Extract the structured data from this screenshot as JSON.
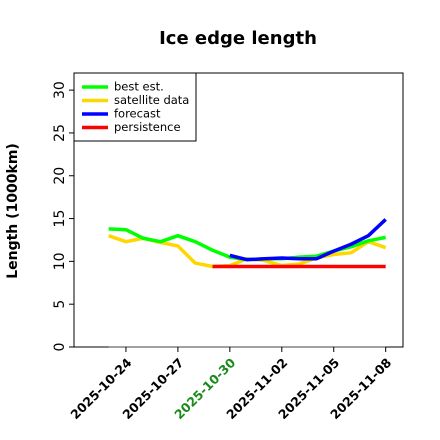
{
  "chart_data": {
    "type": "line",
    "title": "Ice edge length",
    "xlabel": "",
    "ylabel": "Length (1000km)",
    "ylim": [
      0,
      32
    ],
    "yticks": [
      0,
      5,
      10,
      15,
      20,
      25,
      30
    ],
    "xlim": [
      "2025-10-21",
      "2025-11-09"
    ],
    "xticks": [
      "2025-10-24",
      "2025-10-27",
      "2025-10-30",
      "2025-11-02",
      "2025-11-05",
      "2025-11-08"
    ],
    "highlighted_xtick": "2025-10-30",
    "highlight_color": "#1a8a1a",
    "grid": false,
    "legend_position": "top-left",
    "series": [
      {
        "name": "best est.",
        "color": "#00ff00",
        "x": [
          "2025-10-23",
          "2025-10-24",
          "2025-10-25",
          "2025-10-26",
          "2025-10-27",
          "2025-10-28",
          "2025-10-29",
          "2025-10-30",
          "2025-10-31",
          "2025-11-01",
          "2025-11-02",
          "2025-11-03",
          "2025-11-04",
          "2025-11-05",
          "2025-11-06",
          "2025-11-07",
          "2025-11-08"
        ],
        "values": [
          13.8,
          13.7,
          12.7,
          12.3,
          13.0,
          12.3,
          11.3,
          10.5,
          10.2,
          10.3,
          10.3,
          10.5,
          10.6,
          11.2,
          11.7,
          12.4,
          12.8
        ]
      },
      {
        "name": "satellite data",
        "color": "#ffd700",
        "x": [
          "2025-10-23",
          "2025-10-24",
          "2025-10-25",
          "2025-10-26",
          "2025-10-27",
          "2025-10-28",
          "2025-10-29",
          "2025-10-30",
          "2025-10-31",
          "2025-11-01",
          "2025-11-02",
          "2025-11-03",
          "2025-11-04",
          "2025-11-05",
          "2025-11-06",
          "2025-11-07",
          "2025-11-08"
        ],
        "values": [
          13.0,
          12.3,
          12.7,
          12.2,
          11.8,
          9.8,
          9.4,
          9.5,
          10.3,
          10.1,
          9.5,
          9.7,
          10.4,
          10.8,
          11.0,
          12.3,
          11.6
        ]
      },
      {
        "name": "forecast",
        "color": "#0000ff",
        "x": [
          "2025-10-30",
          "2025-10-31",
          "2025-11-01",
          "2025-11-02",
          "2025-11-03",
          "2025-11-04",
          "2025-11-05",
          "2025-11-06",
          "2025-11-07",
          "2025-11-08"
        ],
        "values": [
          10.7,
          10.2,
          10.3,
          10.4,
          10.3,
          10.3,
          11.2,
          12.0,
          13.0,
          14.9
        ]
      },
      {
        "name": "persistence",
        "color": "#ff0000",
        "x": [
          "2025-10-29",
          "2025-11-08"
        ],
        "values": [
          9.4,
          9.4
        ]
      }
    ],
    "reference_line": {
      "color": "#808080",
      "x": [
        "2025-10-23",
        "2025-11-08"
      ],
      "values": [
        0,
        0
      ]
    }
  }
}
